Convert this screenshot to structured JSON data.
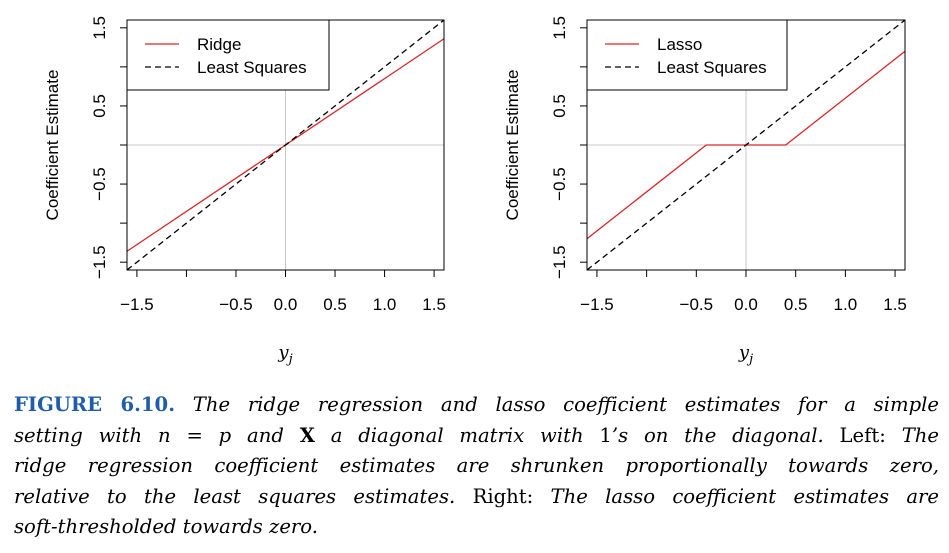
{
  "chart_data": [
    {
      "type": "line",
      "panel": "left",
      "ylabel": "Coefficient Estimate",
      "xlabel": "y",
      "xlabel_subscript": "j",
      "xlim": [
        -1.6,
        1.6
      ],
      "ylim": [
        -1.6,
        1.6
      ],
      "x_ticks": [
        -1.5,
        -1.0,
        -0.5,
        0.0,
        0.5,
        1.0,
        1.5
      ],
      "x_tick_labels": [
        "−1.5",
        "",
        "−0.5",
        "0.0",
        "0.5",
        "1.0",
        "1.5"
      ],
      "y_ticks": [
        -1.5,
        -1.0,
        -0.5,
        0.0,
        0.5,
        1.0,
        1.5
      ],
      "y_tick_labels": [
        "−1.5",
        "",
        "−0.5",
        "",
        "0.5",
        "",
        "1.5"
      ],
      "reference_lines": {
        "x": 0,
        "y": 0,
        "color": "#c8c8c8"
      },
      "legend_position": "top-left",
      "series": [
        {
          "name": "Ridge",
          "style": "solid",
          "color": "#d62728",
          "x": [
            -1.6,
            1.6
          ],
          "y": [
            -1.36,
            1.36
          ]
        },
        {
          "name": "Least Squares",
          "style": "dashed",
          "color": "#000000",
          "x": [
            -1.6,
            1.6
          ],
          "y": [
            -1.6,
            1.6
          ]
        }
      ]
    },
    {
      "type": "line",
      "panel": "right",
      "ylabel": "Coefficient Estimate",
      "xlabel": "y",
      "xlabel_subscript": "j",
      "xlim": [
        -1.6,
        1.6
      ],
      "ylim": [
        -1.6,
        1.6
      ],
      "x_ticks": [
        -1.5,
        -1.0,
        -0.5,
        0.0,
        0.5,
        1.0,
        1.5
      ],
      "x_tick_labels": [
        "−1.5",
        "",
        "−0.5",
        "0.0",
        "0.5",
        "1.0",
        "1.5"
      ],
      "y_ticks": [
        -1.5,
        -1.0,
        -0.5,
        0.0,
        0.5,
        1.0,
        1.5
      ],
      "y_tick_labels": [
        "−1.5",
        "",
        "−0.5",
        "",
        "0.5",
        "",
        "1.5"
      ],
      "reference_lines": {
        "x": 0,
        "y": 0,
        "color": "#c8c8c8"
      },
      "legend_position": "top-left",
      "series": [
        {
          "name": "Lasso",
          "style": "solid",
          "color": "#d62728",
          "x": [
            -1.6,
            -0.4,
            0.4,
            1.6
          ],
          "y": [
            -1.2,
            0.0,
            0.0,
            1.2
          ]
        },
        {
          "name": "Least Squares",
          "style": "dashed",
          "color": "#000000",
          "x": [
            -1.6,
            1.6
          ],
          "y": [
            -1.6,
            1.6
          ]
        }
      ]
    }
  ],
  "caption": {
    "label": "FIGURE 6.10.",
    "lines": [
      [
        {
          "t": "FIGURE 6.10.",
          "s": "lead"
        },
        {
          "t": " The ridge regression and lasso coefficient estimates for a simple",
          "s": "it"
        }
      ],
      [
        {
          "t": "setting with ",
          "s": "it"
        },
        {
          "t": "n",
          "s": "it"
        },
        {
          "t": " = ",
          "s": "up"
        },
        {
          "t": "p",
          "s": "it"
        },
        {
          "t": " and ",
          "s": "it"
        },
        {
          "t": "X",
          "s": "bold"
        },
        {
          "t": " a diagonal matrix with ",
          "s": "it"
        },
        {
          "t": "1",
          "s": "up"
        },
        {
          "t": "’s on the diagonal.",
          "s": "it"
        },
        {
          "t": " Left: ",
          "s": "up"
        },
        {
          "t": "The",
          "s": "it"
        }
      ],
      [
        {
          "t": "ridge regression coefficient estimates are shrunken proportionally towards zero,",
          "s": "it"
        }
      ],
      [
        {
          "t": "relative to the least squares estimates.",
          "s": "it"
        },
        {
          "t": " Right: ",
          "s": "up"
        },
        {
          "t": "The lasso coefficient estimates are",
          "s": "it"
        }
      ],
      [
        {
          "t": "soft-thresholded towards zero.",
          "s": "it"
        }
      ]
    ]
  }
}
